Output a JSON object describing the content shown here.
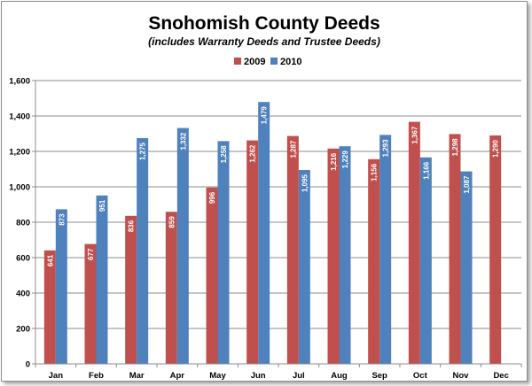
{
  "chart_data": {
    "type": "bar",
    "title": "Snohomish County Deeds",
    "subtitle": "(includes Warranty Deeds and Trustee Deeds)",
    "categories": [
      "Jan",
      "Feb",
      "Mar",
      "Apr",
      "May",
      "Jun",
      "Jul",
      "Aug",
      "Sep",
      "Oct",
      "Nov",
      "Dec"
    ],
    "series": [
      {
        "name": "2009",
        "color": "#c0504d",
        "values": [
          641,
          677,
          836,
          859,
          996,
          1262,
          1287,
          1216,
          1156,
          1367,
          1298,
          1290
        ],
        "labels": [
          "641",
          "677",
          "836",
          "859",
          "996",
          "1,262",
          "1,287",
          "1,216",
          "1,156",
          "1,367",
          "1,298",
          "1,290"
        ]
      },
      {
        "name": "2010",
        "color": "#4f81bd",
        "values": [
          873,
          951,
          1275,
          1332,
          1258,
          1479,
          1095,
          1229,
          1293,
          1166,
          1087,
          null
        ],
        "labels": [
          "873",
          "951",
          "1,275",
          "1,332",
          "1,258",
          "1,479",
          "1,095",
          "1,229",
          "1,293",
          "1,166",
          "1,087",
          ""
        ]
      }
    ],
    "xlabel": "",
    "ylabel": "",
    "ylim": [
      0,
      1600
    ],
    "yticks": [
      "0",
      "200",
      "400",
      "600",
      "800",
      "1,000",
      "1,200",
      "1,400",
      "1,600"
    ],
    "grid": true,
    "legend_position": "top"
  }
}
